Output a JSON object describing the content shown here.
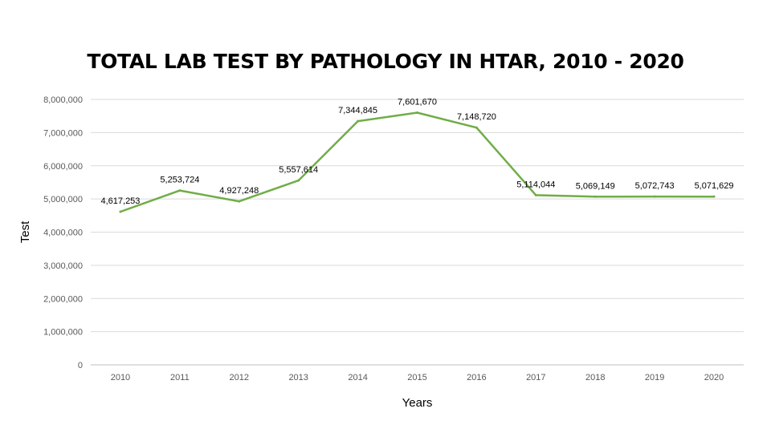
{
  "chart_data": {
    "type": "line",
    "title": "TOTAL LAB TEST BY PATHOLOGY IN HTAR, 2010 - 2020",
    "xlabel": "Years",
    "ylabel": "Test",
    "categories": [
      "2010",
      "2011",
      "2012",
      "2013",
      "2014",
      "2015",
      "2016",
      "2017",
      "2018",
      "2019",
      "2020"
    ],
    "series": [
      {
        "values": [
          4617253,
          5253724,
          4927248,
          5557614,
          7344845,
          7601670,
          7148720,
          5114044,
          5069149,
          5072743,
          5071629
        ],
        "data_labels": [
          "4,617,253",
          "5,253,724",
          "4,927,248",
          "5,557,614",
          "7,344,845",
          "7,601,670",
          "7,148,720",
          "5,114,044",
          "5,069,149",
          "5,072,743",
          "5,071,629"
        ]
      }
    ],
    "y_ticks": [
      "0",
      "1,000,000",
      "2,000,000",
      "3,000,000",
      "4,000,000",
      "5,000,000",
      "6,000,000",
      "7,000,000",
      "8,000,000"
    ],
    "ylim": [
      0,
      8000000
    ],
    "grid": true,
    "legend": "none",
    "colors": {
      "line": "#70ad47",
      "grid": "#d9d9d9",
      "axis": "#bfbfbf"
    }
  }
}
